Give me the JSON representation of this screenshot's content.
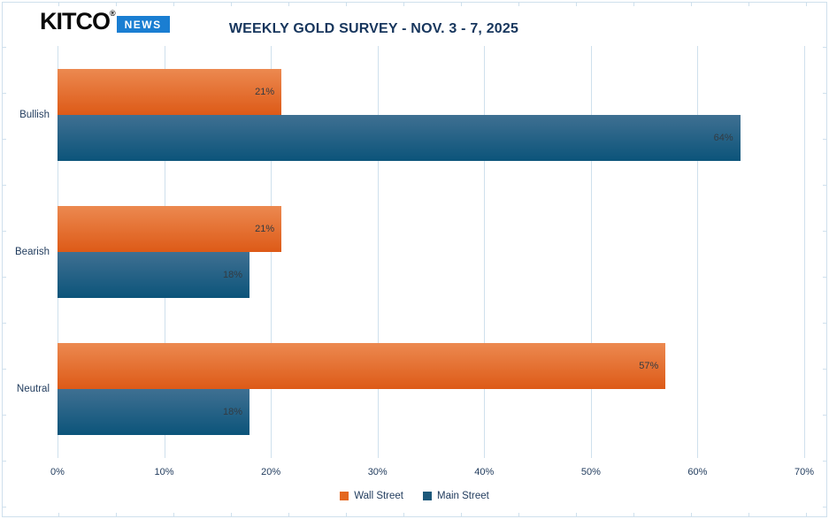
{
  "brand": {
    "kitco": "KITCO",
    "registered": "®",
    "news": "NEWS"
  },
  "title": "WEEKLY GOLD SURVEY - NOV. 3 - 7, 2025",
  "chart_data": {
    "type": "bar",
    "orientation": "horizontal",
    "title": "WEEKLY GOLD SURVEY - NOV. 3 - 7, 2025",
    "categories": [
      "Bullish",
      "Bearish",
      "Neutral"
    ],
    "series": [
      {
        "name": "Wall Street",
        "values": [
          21,
          21,
          57
        ],
        "data_labels": [
          "21%",
          "21%",
          "57%"
        ],
        "color_top": "#ec8950",
        "color_bottom": "#dd5a17",
        "legend_color": "#e4671f"
      },
      {
        "name": "Main Street",
        "values": [
          64,
          18,
          18
        ],
        "data_labels": [
          "64%",
          "18%",
          "18%"
        ],
        "color_top": "#3f7092",
        "color_bottom": "#0c547a",
        "legend_color": "#1c587a"
      }
    ],
    "x_ticks": [
      "0%",
      "10%",
      "20%",
      "30%",
      "40%",
      "50%",
      "60%",
      "70%"
    ],
    "xlim": [
      0,
      70
    ],
    "xlabel": "",
    "ylabel": "",
    "grid": true,
    "legend_position": "bottom"
  },
  "colors": {
    "background": "#ffffff",
    "grid": "#cfe0ed",
    "title": "#17365d",
    "axis_text": "#1f3a5c",
    "data_label": "#333b42",
    "news_badge_bg": "#1a7ed2",
    "kitco_black": "#0a0a0a"
  }
}
